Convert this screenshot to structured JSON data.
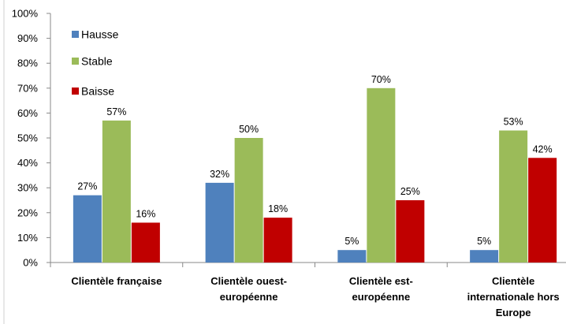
{
  "chart_data": {
    "type": "bar",
    "title": "",
    "xlabel": "",
    "ylabel": "",
    "ylim": [
      0,
      100
    ],
    "y_unit": "%",
    "y_ticks": [
      "0%",
      "10%",
      "20%",
      "30%",
      "40%",
      "50%",
      "60%",
      "70%",
      "80%",
      "90%",
      "100%"
    ],
    "grid": false,
    "legend_position": "top-left",
    "categories": [
      [
        "Clientèle française"
      ],
      [
        "Clientèle ouest-",
        "européenne"
      ],
      [
        "Clientèle est-",
        "européenne"
      ],
      [
        "Clientèle",
        "internationale hors",
        "Europe"
      ]
    ],
    "series": [
      {
        "name": "Hausse",
        "color": "#4F81BD",
        "values": [
          27,
          32,
          5,
          5
        ],
        "labels": [
          "27%",
          "32%",
          "5%",
          "5%"
        ]
      },
      {
        "name": "Stable",
        "color": "#9BBB59",
        "values": [
          57,
          50,
          70,
          53
        ],
        "labels": [
          "57%",
          "50%",
          "70%",
          "53%"
        ]
      },
      {
        "name": "Baisse",
        "color": "#C00000",
        "values": [
          16,
          18,
          25,
          42
        ],
        "labels": [
          "16%",
          "18%",
          "25%",
          "42%"
        ]
      }
    ]
  }
}
